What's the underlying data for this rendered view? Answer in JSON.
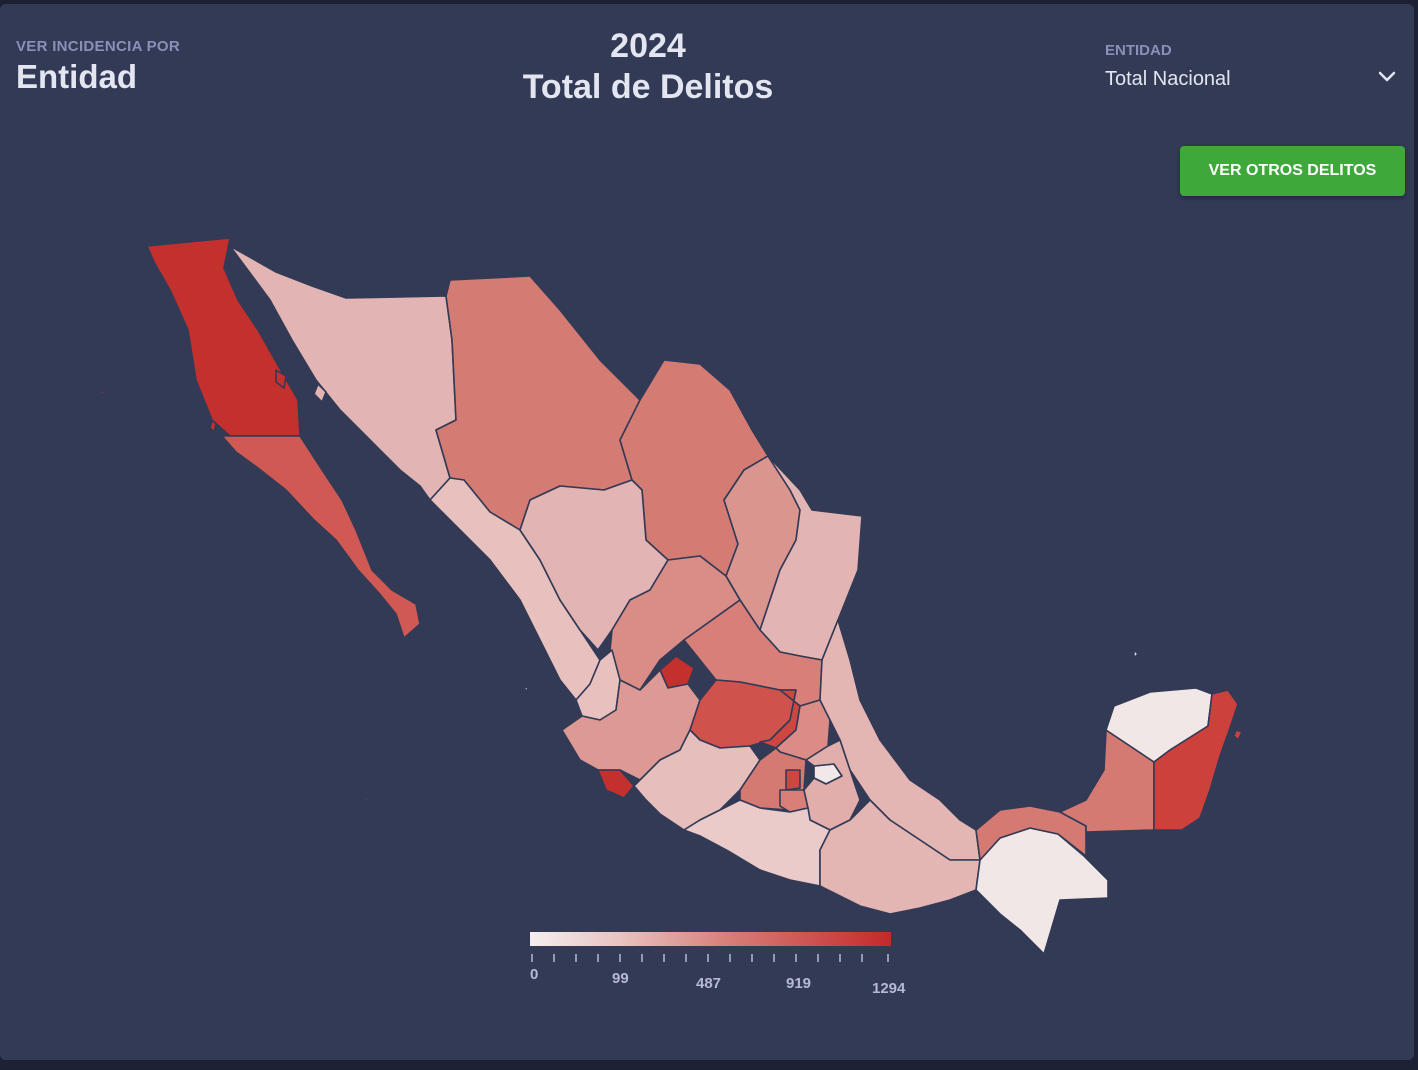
{
  "header": {
    "incidence_label": "VER INCIDENCIA POR",
    "incidence_value": "Entidad",
    "year": "2024",
    "title": "Total de Delitos",
    "entity_label": "ENTIDAD",
    "entity_value": "Total Nacional",
    "other_button": "VER OTROS DELITOS"
  },
  "colors": {
    "background": "#323a56",
    "button": "#3fa83a",
    "scale_low": "#f4eff0",
    "scale_high": "#c4292a"
  },
  "legend": {
    "labels": [
      "0",
      "99",
      "487",
      "919",
      "1294"
    ]
  },
  "map": {
    "name": "Mexico",
    "levels": "color scale 0–1294"
  }
}
